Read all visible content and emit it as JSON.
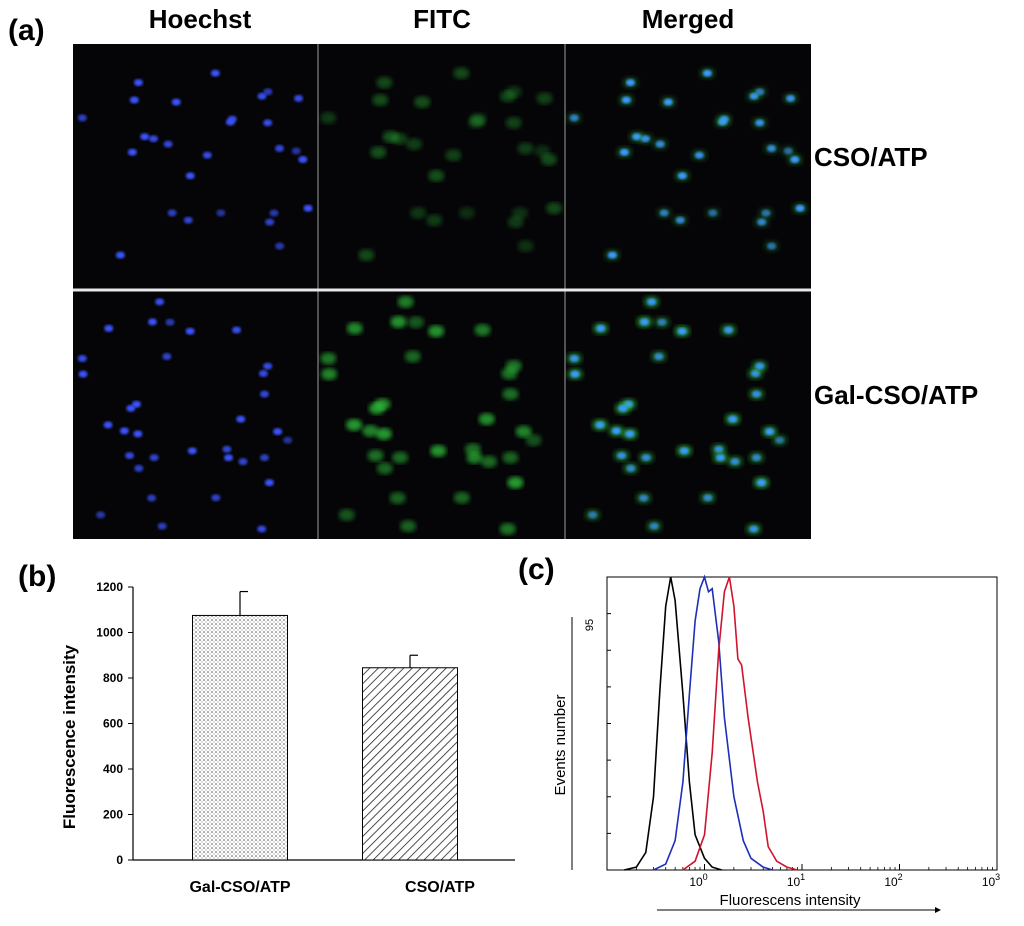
{
  "panel_a": {
    "letter": "(a)",
    "columns": [
      "Hoechst",
      "FITC",
      "Merged"
    ],
    "rows": [
      "CSO/ATP",
      "Gal-CSO/ATP"
    ]
  },
  "panel_b": {
    "letter": "(b)"
  },
  "panel_c": {
    "letter": "(c)"
  },
  "colors": {
    "hoechst": "#3a52ff",
    "fitc": "#2fc23a",
    "curve_black": "#000000",
    "curve_blue": "#1c2fb8",
    "curve_red": "#d0142c"
  },
  "chart_data": [
    {
      "type": "bar",
      "ylabel": "Fluorescence intensity",
      "categories": [
        "Gal-CSO/ATP",
        "CSO/ATP"
      ],
      "values": [
        1075,
        845
      ],
      "errors": [
        105,
        55
      ],
      "ylim": [
        0,
        1200
      ],
      "yticks": [
        "0",
        "200",
        "400",
        "600",
        "800",
        "1000",
        "1200"
      ],
      "patterns": [
        "dots",
        "diagonal-hatch"
      ]
    },
    {
      "type": "line",
      "xlabel": "Fluorescens intensity",
      "ylabel": "Events number",
      "xscale": "log",
      "xlim": [
        0.1,
        1000
      ],
      "xticks": [
        {
          "base": "10",
          "exp": "0"
        },
        {
          "base": "10",
          "exp": "1"
        },
        {
          "base": "10",
          "exp": "2"
        },
        {
          "base": "10",
          "exp": "3"
        }
      ],
      "ytick_label": "95",
      "ylim": [
        0,
        100
      ],
      "series": [
        {
          "color": "#000000",
          "points": [
            [
              0.15,
              0
            ],
            [
              0.2,
              1
            ],
            [
              0.25,
              6
            ],
            [
              0.3,
              25
            ],
            [
              0.35,
              62
            ],
            [
              0.4,
              90
            ],
            [
              0.45,
              100
            ],
            [
              0.5,
              92
            ],
            [
              0.6,
              60
            ],
            [
              0.7,
              30
            ],
            [
              0.8,
              12
            ],
            [
              1.0,
              4
            ],
            [
              1.2,
              1
            ],
            [
              1.5,
              0
            ]
          ]
        },
        {
          "color": "#1c2fb8",
          "points": [
            [
              0.3,
              0
            ],
            [
              0.4,
              2
            ],
            [
              0.5,
              10
            ],
            [
              0.6,
              30
            ],
            [
              0.7,
              60
            ],
            [
              0.8,
              85
            ],
            [
              0.9,
              96
            ],
            [
              1.0,
              100
            ],
            [
              1.1,
              95
            ],
            [
              1.2,
              96
            ],
            [
              1.4,
              78
            ],
            [
              1.6,
              52
            ],
            [
              2.0,
              25
            ],
            [
              2.5,
              10
            ],
            [
              3.0,
              4
            ],
            [
              4.0,
              1
            ],
            [
              5.0,
              0
            ]
          ]
        },
        {
          "color": "#d0142c",
          "points": [
            [
              0.6,
              0
            ],
            [
              0.8,
              3
            ],
            [
              1.0,
              12
            ],
            [
              1.2,
              40
            ],
            [
              1.4,
              75
            ],
            [
              1.6,
              95
            ],
            [
              1.8,
              100
            ],
            [
              2.0,
              90
            ],
            [
              2.2,
              72
            ],
            [
              2.4,
              70
            ],
            [
              2.8,
              52
            ],
            [
              3.5,
              30
            ],
            [
              4.0,
              20
            ],
            [
              4.5,
              8
            ],
            [
              5.5,
              3
            ],
            [
              7.0,
              1
            ],
            [
              9.0,
              0
            ]
          ]
        }
      ]
    }
  ]
}
